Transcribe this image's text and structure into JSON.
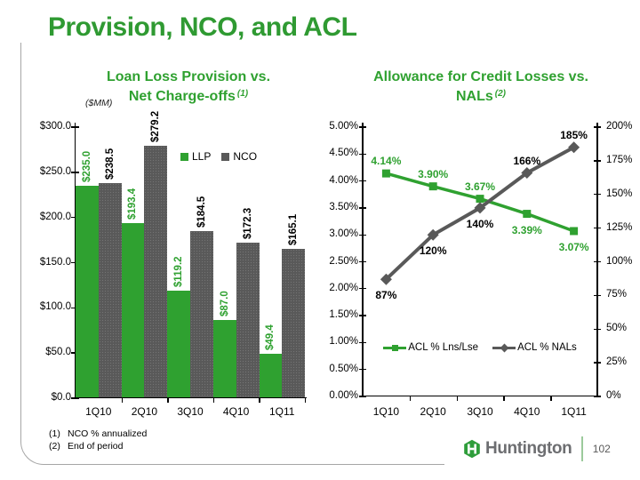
{
  "header": {
    "title": "Provision, NCO, and ACL"
  },
  "chart_data": [
    {
      "type": "bar",
      "title_line1": "Loan Loss Provision vs.",
      "title_line2": "Net Charge-offs",
      "footnote_ref": "(1)",
      "unit_label": "($MM)",
      "categories": [
        "1Q10",
        "2Q10",
        "3Q10",
        "4Q10",
        "1Q11"
      ],
      "series": [
        {
          "name": "LLP",
          "color": "#2fa130",
          "label_color": "#2fa130",
          "values": [
            235.0,
            193.4,
            119.2,
            87.0,
            49.4
          ],
          "labels": [
            "$235.0",
            "$193.4",
            "$119.2",
            "$87.0",
            "$49.4"
          ]
        },
        {
          "name": "NCO",
          "color": "#595959",
          "label_color": "#000000",
          "values": [
            238.5,
            279.2,
            184.5,
            172.3,
            165.1
          ],
          "labels": [
            "$238.5",
            "$279.2",
            "$184.5",
            "$172.3",
            "$165.1"
          ]
        }
      ],
      "ylim": [
        0,
        300
      ],
      "ytick_labels": [
        "$300.0",
        "$250.0",
        "$200.0",
        "$150.0",
        "$100.0",
        "$50.0",
        "$0.0"
      ],
      "legend": [
        "LLP",
        "NCO"
      ],
      "legend_position": "inside-top-right",
      "grid": false
    },
    {
      "type": "line",
      "title_line1": "Allowance for Credit Losses vs.",
      "title_line2": "NALs",
      "footnote_ref": "(2)",
      "categories": [
        "1Q10",
        "2Q10",
        "3Q10",
        "4Q10",
        "1Q11"
      ],
      "series": [
        {
          "name": "ACL % Lns/Lse",
          "color": "#2fa130",
          "label_color": "#2fa130",
          "marker": "square",
          "axis": "left",
          "values": [
            4.14,
            3.9,
            3.67,
            3.39,
            3.07
          ],
          "labels": [
            "4.14%",
            "3.90%",
            "3.67%",
            "3.39%",
            "3.07%"
          ],
          "label_side": [
            "above",
            "above",
            "above",
            "below",
            "below"
          ]
        },
        {
          "name": "ACL % NALs",
          "color": "#595959",
          "label_color": "#000000",
          "marker": "diamond",
          "axis": "right",
          "values": [
            87,
            120,
            140,
            166,
            185
          ],
          "labels": [
            "87%",
            "120%",
            "140%",
            "166%",
            "185%"
          ],
          "label_side": [
            "below",
            "below",
            "below",
            "above",
            "above"
          ]
        }
      ],
      "left_axis": {
        "lim": [
          0,
          5
        ],
        "tick_labels": [
          "5.00%",
          "4.50%",
          "4.00%",
          "3.50%",
          "3.00%",
          "2.50%",
          "2.00%",
          "1.50%",
          "1.00%",
          "0.50%",
          "0.00%"
        ]
      },
      "right_axis": {
        "lim": [
          0,
          200
        ],
        "tick_labels": [
          "200%",
          "175%",
          "150%",
          "125%",
          "100%",
          "75%",
          "50%",
          "25%",
          "0%"
        ]
      },
      "legend": [
        "ACL % Lns/Lse",
        "ACL % NALs"
      ],
      "legend_position": "inside-bottom",
      "grid": false
    }
  ],
  "footnotes": [
    {
      "ref": "(1)",
      "text": "NCO % annualized"
    },
    {
      "ref": "(2)",
      "text": "End of period"
    }
  ],
  "footer": {
    "brand": "Huntington",
    "page_number": "102",
    "logo_icon": "huntington-hexagon-h-logo"
  },
  "colors": {
    "brand_green": "#2fa130",
    "dark_gray": "#595959",
    "wordmark_gray": "#6d6e71"
  }
}
